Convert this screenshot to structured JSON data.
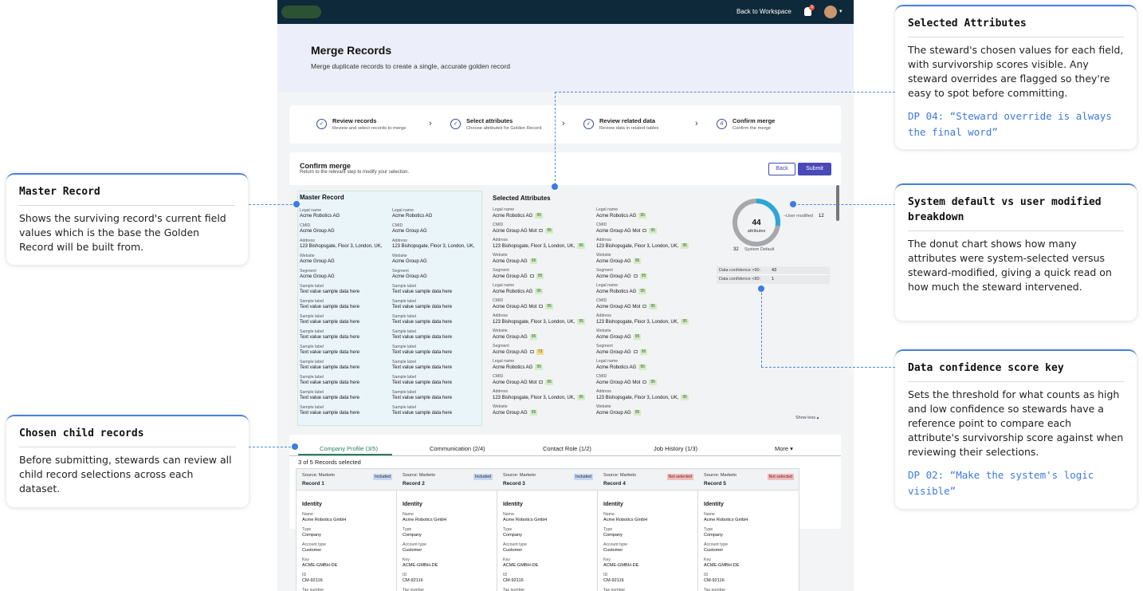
{
  "app": {
    "topbar": {
      "back_to_workspace": "Back to Workspace",
      "notification_count": "3"
    },
    "header": {
      "title": "Merge Records",
      "subtitle": "Merge duplicate records to create a single, accurate golden record"
    },
    "stepper": [
      {
        "label": "Review records",
        "desc": "Review and select records to merge",
        "icon": "check-circle-icon"
      },
      {
        "label": "Select attributes",
        "desc": "Choose attributes for Golden Record",
        "icon": "check-circle-icon"
      },
      {
        "label": "Review related data",
        "desc": "Review data in related tables",
        "icon": "check-circle-icon"
      },
      {
        "label": "Confirm merge",
        "desc": "Confirm the merge",
        "number": "4"
      }
    ],
    "confirm": {
      "title": "Confirm merge",
      "subtitle": "Return to the relevant step to modify your selection.",
      "back_label": "Back",
      "submit_label": "Submit"
    },
    "master": {
      "title": "Master Record",
      "col1": [
        {
          "label": "Legal name",
          "value": "Acme Robotics AG"
        },
        {
          "label": "CMID",
          "value": "Acme Group AG"
        },
        {
          "label": "Address",
          "value": "123 Bishopsgate, Floor 3, London, UK,"
        },
        {
          "label": "Website",
          "value": "Acme Group AG"
        },
        {
          "label": "Segment",
          "value": "Acme Group AG"
        },
        {
          "label": "Sample label",
          "value": "Text value sample data here"
        },
        {
          "label": "Sample label",
          "value": "Text value sample data here"
        },
        {
          "label": "Sample label",
          "value": "Text value sample data here"
        },
        {
          "label": "Sample label",
          "value": "Text value sample data here"
        },
        {
          "label": "Sample label",
          "value": "Text value sample data here"
        },
        {
          "label": "Sample label",
          "value": "Text value sample data here"
        },
        {
          "label": "Sample label",
          "value": "Text value sample data here"
        },
        {
          "label": "Sample label",
          "value": "Text value sample data here"
        },
        {
          "label": "Sample label",
          "value": "Text value sample data here"
        }
      ],
      "col2": [
        {
          "label": "Legal name",
          "value": "Acme Robotics AG"
        },
        {
          "label": "CMID",
          "value": "Acme Group AG"
        },
        {
          "label": "Address",
          "value": "123 Bishopsgate, Floor 3, London, UK,"
        },
        {
          "label": "Website",
          "value": "Acme Group AG"
        },
        {
          "label": "Segment",
          "value": "Acme Group AG"
        },
        {
          "label": "Sample label",
          "value": "Text value sample data here"
        },
        {
          "label": "Sample label",
          "value": "Text value sample data here"
        },
        {
          "label": "Sample label",
          "value": "Text value sample data here"
        },
        {
          "label": "Sample label",
          "value": "Text value sample data here"
        },
        {
          "label": "Sample label",
          "value": "Text value sample data here"
        },
        {
          "label": "Sample label",
          "value": "Text value sample data here"
        },
        {
          "label": "Sample label",
          "value": "Text value sample data here"
        },
        {
          "label": "Sample label",
          "value": "Text value sample data here"
        },
        {
          "label": "Sample label",
          "value": "Text value sample data here"
        }
      ]
    },
    "selected": {
      "title": "Selected Attributes",
      "col1": [
        {
          "label": "Legal name",
          "value": "Acme Robotics AG",
          "score": "95",
          "edited": false
        },
        {
          "label": "CMID",
          "value": "Acme Group AG Mot",
          "score": "95",
          "edited": true
        },
        {
          "label": "Address",
          "value": "123 Bishopsgate, Floor 3, London, UK,",
          "score": "95",
          "edited": false
        },
        {
          "label": "Website",
          "value": "Acme Group AG",
          "score": "95",
          "edited": false
        },
        {
          "label": "Segment",
          "value": "Acme Group AG",
          "score": "95",
          "edited": true
        },
        {
          "label": "Legal name",
          "value": "Acme Robotics AG",
          "score": "95",
          "edited": false
        },
        {
          "label": "CMID",
          "value": "Acme Group AG Mot",
          "score": "95",
          "edited": true
        },
        {
          "label": "Address",
          "value": "123 Bishopsgate, Floor 3, London, UK,",
          "score": "95",
          "edited": false
        },
        {
          "label": "Website",
          "value": "Acme Group AG",
          "score": "95",
          "edited": false
        },
        {
          "label": "Segment",
          "value": "Acme Group AG",
          "score": "73",
          "edited": true,
          "low": true
        },
        {
          "label": "Legal name",
          "value": "Acme Robotics AG",
          "score": "95",
          "edited": false
        },
        {
          "label": "CMID",
          "value": "Acme Group AG Mot",
          "score": "95",
          "edited": true
        },
        {
          "label": "Address",
          "value": "123 Bishopsgate, Floor 3, London, UK,",
          "score": "95",
          "edited": false
        },
        {
          "label": "Website",
          "value": "Acme Group AG",
          "score": "95",
          "edited": false
        }
      ],
      "col2": [
        {
          "label": "Legal name",
          "value": "Acme Robotics AG",
          "score": "95",
          "edited": false
        },
        {
          "label": "CMID",
          "value": "Acme Group AG Mot",
          "score": "95",
          "edited": true
        },
        {
          "label": "Address",
          "value": "123 Bishopsgate, Floor 3, London, UK,",
          "score": "95",
          "edited": false
        },
        {
          "label": "Website",
          "value": "Acme Group AG",
          "score": "95",
          "edited": false
        },
        {
          "label": "Segment",
          "value": "Acme Group AG",
          "score": "95",
          "edited": true
        },
        {
          "label": "Legal name",
          "value": "Acme Robotics AG",
          "score": "95",
          "edited": false
        },
        {
          "label": "CMID",
          "value": "Acme Group AG Mot",
          "score": "95",
          "edited": true
        },
        {
          "label": "Address",
          "value": "123 Bishopsgate, Floor 3, London, UK,",
          "score": "95",
          "edited": false
        },
        {
          "label": "Website",
          "value": "Acme Group AG",
          "score": "95",
          "edited": false
        },
        {
          "label": "Segment",
          "value": "Acme Group AG",
          "score": "95",
          "edited": true
        },
        {
          "label": "Legal name",
          "value": "Acme Robotics AG",
          "score": "95",
          "edited": false
        },
        {
          "label": "CMID",
          "value": "Acme Group AG Mot",
          "score": "95",
          "edited": true
        },
        {
          "label": "Address",
          "value": "123 Bishopsgate, Floor 3, London, UK,",
          "score": "95",
          "edited": false
        },
        {
          "label": "Website",
          "value": "Acme Group AG",
          "score": "95",
          "edited": false
        }
      ]
    },
    "donut": {
      "total": "44",
      "total_label": "attributes",
      "user_modified_label": "User modified",
      "user_modified": "12",
      "system_default_label": "System Default",
      "system_default": "32",
      "colors": {
        "user": "#2aa6d9",
        "system": "#a6a8ab"
      }
    },
    "confidence_key": [
      {
        "label": "Data confidence >90:",
        "value": "43"
      },
      {
        "label": "Data confidence <80:",
        "value": "1"
      }
    ],
    "show_less": "Show less",
    "tabs": [
      {
        "label": "Company Profile (3/5)",
        "active": true
      },
      {
        "label": "Communication (2/4)"
      },
      {
        "label": "Contact Role (1/2)"
      },
      {
        "label": "Job History (1/3)"
      },
      {
        "label": "More"
      }
    ],
    "records_selected": "3 of 5 Records selected",
    "cards": [
      {
        "source": "Source: Marketo",
        "name": "Record 1",
        "status": "Included",
        "included": true
      },
      {
        "source": "Source: Marketo",
        "name": "Record 2",
        "status": "Included",
        "included": true
      },
      {
        "source": "Source: Marketo",
        "name": "Record 3",
        "status": "Included",
        "included": true
      },
      {
        "source": "Source: Marketo",
        "name": "Record 4",
        "status": "Not selected",
        "included": false
      },
      {
        "source": "Source: Marketo",
        "name": "Record 5",
        "status": "Not selected",
        "included": false
      }
    ],
    "card_fields": {
      "heading": "Identity",
      "items": [
        {
          "label": "Name",
          "value": "Acme Robotics GmbH"
        },
        {
          "label": "Type",
          "value": "Company"
        },
        {
          "label": "Account type",
          "value": "Customer"
        },
        {
          "label": "Key",
          "value": "ACME-GMBH-DE"
        },
        {
          "label": "ID",
          "value": "CM-92116"
        },
        {
          "label": "Tax number",
          "value": ""
        }
      ]
    }
  },
  "callouts": {
    "master_record": {
      "title": "Master Record",
      "body": "Shows the surviving record's current field values which is the base the Golden Record will be built from."
    },
    "child_records": {
      "title": "Chosen child records",
      "body": "Before submitting, stewards can review all child record selections across each dataset."
    },
    "selected_attributes": {
      "title": "Selected Attributes",
      "body": "The steward's chosen values for each field, with survivorship scores visible. Any steward overrides are flagged so they're easy to spot before committing.",
      "dp": "DP 04: “Steward override is always the final word”"
    },
    "breakdown": {
      "title": "System default vs user modified breakdown",
      "body": "The donut chart shows how many attributes were system-selected versus steward-modified, giving a quick read on how much the steward intervened."
    },
    "confidence_key": {
      "title": "Data confidence score key",
      "body": "Sets the threshold for what counts as high and low confidence so stewards have a reference point to compare each attribute's survivorship score against when reviewing their selections.",
      "dp": "DP 02: “Make the system's logic visible”"
    }
  }
}
